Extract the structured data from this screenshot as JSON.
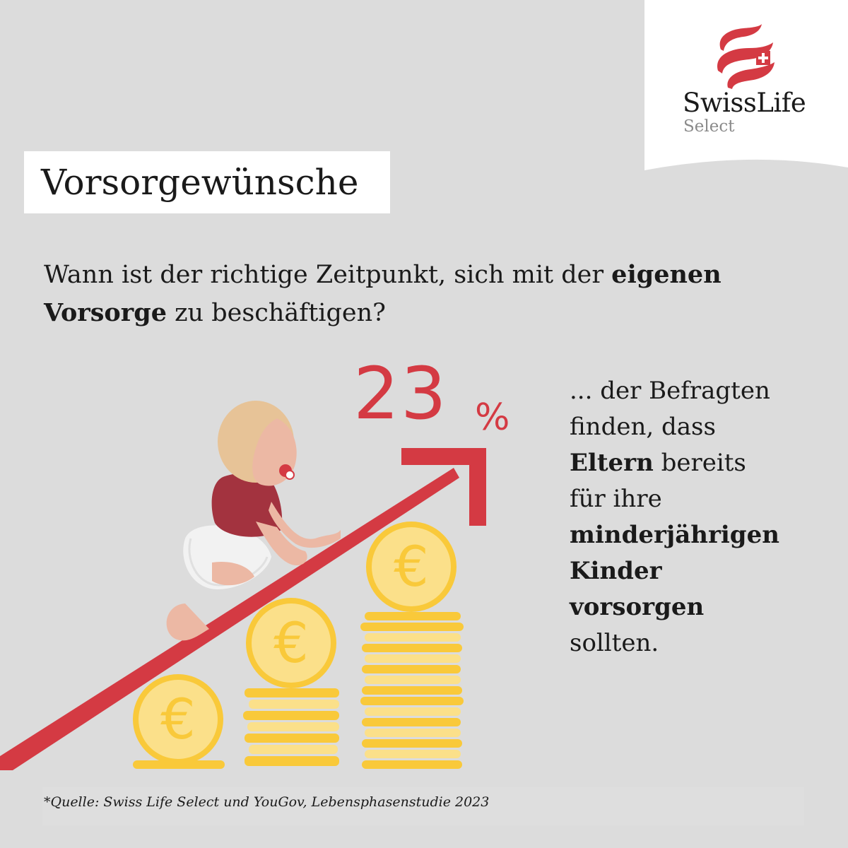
{
  "brand": {
    "name": "SwissLife",
    "sub": "Select",
    "colors": {
      "red": "#d43a43",
      "coin": "#f9c93a",
      "coin_light": "#fbe08a"
    }
  },
  "title": "Vorsorgewünsche",
  "question": {
    "part1": "Wann ist der richtige Zeitpunkt, sich mit der ",
    "bold1": "eigenen Vorsorge",
    "part2": " zu beschäftigen?"
  },
  "stat": {
    "number": "23",
    "sign": "%",
    "lines": {
      "l1": "... der Befragten",
      "l2": "finden, dass",
      "l3_bold": "Eltern",
      "l3_rest": " bereits",
      "l4": "für ihre",
      "l5_bold": "minderjährigen",
      "l6_bold": "Kinder",
      "l7_bold": "vorsorgen",
      "l8": "sollten."
    }
  },
  "icons": {
    "coin": "euro-coin-icon",
    "arrow": "rising-arrow-icon",
    "baby": "baby-illustration"
  },
  "source": "*Quelle: Swiss Life Select und YouGov, Lebensphasenstudie 2023"
}
